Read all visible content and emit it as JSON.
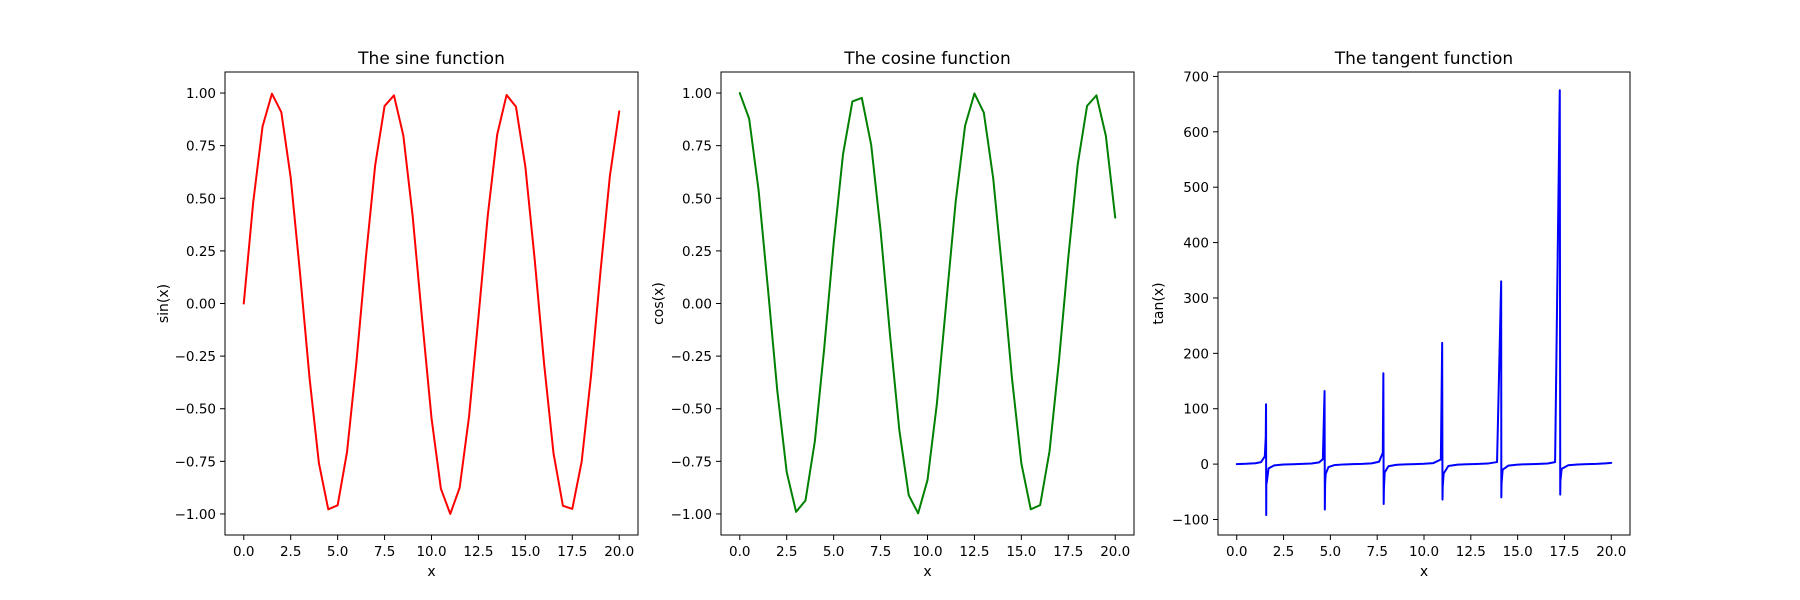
{
  "figure": {
    "background": "#ffffff"
  },
  "chart_data": [
    {
      "type": "line",
      "title": "The sine function",
      "xlabel": "x",
      "ylabel": "sin(x)",
      "xlim": [
        -1.0,
        21.0
      ],
      "ylim": [
        -1.1,
        1.1
      ],
      "xticks": [
        0,
        2.5,
        5,
        7.5,
        10,
        12.5,
        15,
        17.5,
        20
      ],
      "xtick_labels": [
        "0.0",
        "2.5",
        "5.0",
        "7.5",
        "10.0",
        "12.5",
        "15.0",
        "17.5",
        "20.0"
      ],
      "yticks": [
        -1,
        -0.75,
        -0.5,
        -0.25,
        0,
        0.25,
        0.5,
        0.75,
        1
      ],
      "ytick_labels": [
        "−1.00",
        "−0.75",
        "−0.50",
        "−0.25",
        "0.00",
        "0.25",
        "0.50",
        "0.75",
        "1.00"
      ],
      "grid": false,
      "series": [
        {
          "color": "#ff0000",
          "x": [
            0,
            0.5,
            1,
            1.5,
            2,
            2.5,
            3,
            3.5,
            4,
            4.5,
            5,
            5.5,
            6,
            6.5,
            7,
            7.5,
            8,
            8.5,
            9,
            9.5,
            10,
            10.5,
            11,
            11.5,
            12,
            12.5,
            13,
            13.5,
            14,
            14.5,
            15,
            15.5,
            16,
            16.5,
            17,
            17.5,
            18,
            18.5,
            19,
            19.5,
            20
          ],
          "y": [
            0,
            0.479,
            0.841,
            0.997,
            0.909,
            0.598,
            0.141,
            -0.351,
            -0.757,
            -0.978,
            -0.959,
            -0.706,
            -0.279,
            0.215,
            0.657,
            0.938,
            0.989,
            0.798,
            0.412,
            -0.075,
            -0.544,
            -0.88,
            -1.0,
            -0.875,
            -0.537,
            -0.066,
            0.42,
            0.803,
            0.991,
            0.935,
            0.65,
            0.206,
            -0.288,
            -0.712,
            -0.961,
            -0.976,
            -0.751,
            -0.342,
            0.15,
            0.604,
            0.913
          ]
        }
      ]
    },
    {
      "type": "line",
      "title": "The cosine function",
      "xlabel": "x",
      "ylabel": "cos(x)",
      "xlim": [
        -1.0,
        21.0
      ],
      "ylim": [
        -1.1,
        1.1
      ],
      "xticks": [
        0,
        2.5,
        5,
        7.5,
        10,
        12.5,
        15,
        17.5,
        20
      ],
      "xtick_labels": [
        "0.0",
        "2.5",
        "5.0",
        "7.5",
        "10.0",
        "12.5",
        "15.0",
        "17.5",
        "20.0"
      ],
      "yticks": [
        -1,
        -0.75,
        -0.5,
        -0.25,
        0,
        0.25,
        0.5,
        0.75,
        1
      ],
      "ytick_labels": [
        "−1.00",
        "−0.75",
        "−0.50",
        "−0.25",
        "0.00",
        "0.25",
        "0.50",
        "0.75",
        "1.00"
      ],
      "grid": false,
      "series": [
        {
          "color": "#008000",
          "x": [
            0,
            0.5,
            1,
            1.5,
            2,
            2.5,
            3,
            3.5,
            4,
            4.5,
            5,
            5.5,
            6,
            6.5,
            7,
            7.5,
            8,
            8.5,
            9,
            9.5,
            10,
            10.5,
            11,
            11.5,
            12,
            12.5,
            13,
            13.5,
            14,
            14.5,
            15,
            15.5,
            16,
            16.5,
            17,
            17.5,
            18,
            18.5,
            19,
            19.5,
            20
          ],
          "y": [
            1.0,
            0.878,
            0.54,
            0.071,
            -0.416,
            -0.801,
            -0.99,
            -0.936,
            -0.654,
            -0.211,
            0.284,
            0.709,
            0.96,
            0.977,
            0.754,
            0.347,
            -0.146,
            -0.602,
            -0.911,
            -0.997,
            -0.839,
            -0.476,
            0.004,
            0.483,
            0.844,
            0.998,
            0.907,
            0.595,
            0.137,
            -0.355,
            -0.76,
            -0.978,
            -0.958,
            -0.702,
            -0.275,
            0.219,
            0.66,
            0.939,
            0.989,
            0.797,
            0.408
          ]
        }
      ]
    },
    {
      "type": "line",
      "title": "The tangent function",
      "xlabel": "x",
      "ylabel": "tan(x)",
      "xlim": [
        -1.0,
        21.0
      ],
      "ylim": [
        -128,
        708
      ],
      "xticks": [
        0,
        2.5,
        5,
        7.5,
        10,
        12.5,
        15,
        17.5,
        20
      ],
      "xtick_labels": [
        "0.0",
        "2.5",
        "5.0",
        "7.5",
        "10.0",
        "12.5",
        "15.0",
        "17.5",
        "20.0"
      ],
      "yticks": [
        -100,
        0,
        100,
        200,
        300,
        400,
        500,
        600,
        700
      ],
      "ytick_labels": [
        "−100",
        "0",
        "100",
        "200",
        "300",
        "400",
        "500",
        "600",
        "700"
      ],
      "grid": false,
      "series": [
        {
          "color": "#0000ff",
          "x": [
            0,
            0.5,
            1.0,
            1.3,
            1.5,
            1.55,
            1.565,
            1.575,
            1.58,
            1.6,
            1.7,
            2.0,
            2.5,
            3.0,
            3.5,
            4.0,
            4.4,
            4.6,
            4.69,
            4.705,
            4.72,
            4.75,
            4.9,
            5.2,
            5.7,
            6.2,
            6.7,
            7.2,
            7.6,
            7.8,
            7.83,
            7.847,
            7.86,
            7.9,
            8.1,
            8.5,
            9.0,
            9.5,
            10.0,
            10.5,
            10.9,
            10.97,
            10.988,
            11.0,
            11.05,
            11.3,
            11.8,
            12.3,
            12.8,
            13.4,
            13.9,
            14.12,
            14.13,
            14.14,
            14.2,
            14.5,
            15.0,
            15.5,
            16.0,
            16.6,
            17.0,
            17.25,
            17.275,
            17.285,
            17.35,
            17.7,
            18.2,
            18.7,
            19.2,
            19.7,
            20.0
          ],
          "y": [
            0,
            0.55,
            1.56,
            3.6,
            14.1,
            48.1,
            108,
            -92,
            -21,
            -34,
            -7.7,
            -2.2,
            -0.75,
            -0.14,
            0.37,
            1.16,
            3.1,
            8.9,
            132,
            -82,
            -36,
            -17.6,
            -5.3,
            -1.9,
            -0.6,
            -0.08,
            0.41,
            1.3,
            4.2,
            20.4,
            164,
            -72,
            -44,
            -15,
            -3.9,
            -1.35,
            -0.45,
            0.07,
            0.65,
            1.86,
            8.3,
            219,
            -64,
            -40,
            -17,
            -3.4,
            -0.9,
            -0.3,
            0.22,
            1.0,
            3.7,
            330,
            -60,
            -35,
            -10,
            -2.8,
            -0.86,
            -0.19,
            0.3,
            1.17,
            3.5,
            675,
            -55,
            -30,
            -8.5,
            -2.1,
            -0.7,
            -0.13,
            0.36,
            1.4,
            2.24
          ]
        }
      ]
    }
  ]
}
